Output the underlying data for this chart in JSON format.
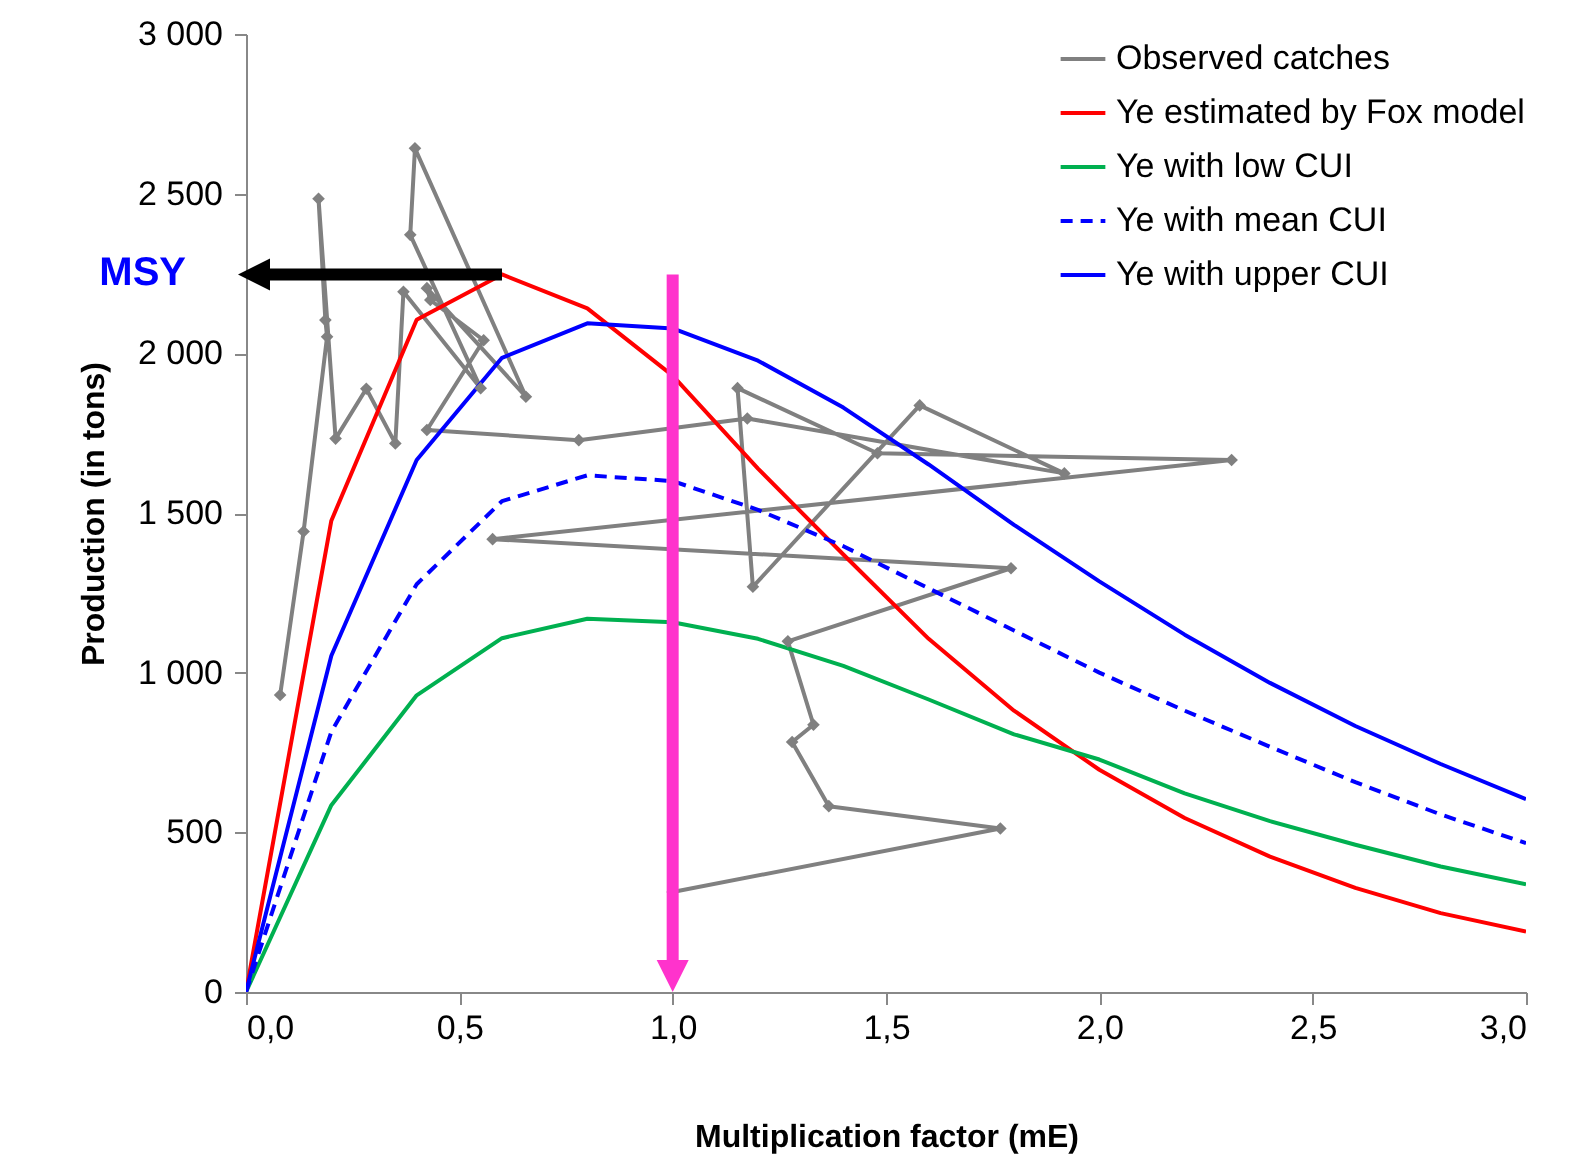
{
  "chart_data": {
    "type": "line",
    "xlabel": "Multiplication factor (mE)",
    "ylabel": "Production (in tons)",
    "xlim": [
      0,
      3
    ],
    "ylim": [
      0,
      3000
    ],
    "xticks": [
      {
        "value": 0,
        "label": "0,0"
      },
      {
        "value": 0.5,
        "label": "0,5"
      },
      {
        "value": 1,
        "label": "1,0"
      },
      {
        "value": 1.5,
        "label": "1,5"
      },
      {
        "value": 2,
        "label": "2,0"
      },
      {
        "value": 2.5,
        "label": "2,5"
      },
      {
        "value": 3,
        "label": "3,0"
      }
    ],
    "yticks": [
      0,
      500,
      {
        "value": 1000,
        "label": "1 000"
      },
      {
        "value": 1500,
        "label": "1 500"
      },
      {
        "value": 2000,
        "label": "2 000"
      },
      {
        "value": 2500,
        "label": "2 500"
      },
      {
        "value": 3000,
        "label": "3 000"
      }
    ],
    "grid": false,
    "legend": "top right",
    "annotations": [
      "MSY"
    ],
    "ref_lines": [
      {
        "axis": "x",
        "value": 1,
        "color": "#ff33cc"
      }
    ],
    "series": [
      {
        "name": "Observed catches",
        "color": "#808080",
        "marker": "diamond",
        "x": [
          0.08,
          0.135,
          0.19,
          0.186,
          0.17,
          0.21,
          0.282,
          0.35,
          0.369,
          0.55,
          0.385,
          0.396,
          0.656,
          0.424,
          0.432,
          0.557,
          0.424,
          0.78,
          1.175,
          1.918,
          1.579,
          1.188,
          1.152,
          1.48,
          2.31,
          0.578,
          1.793,
          1.27,
          1.33,
          1.28,
          1.366,
          1.768,
          1.0
        ],
        "values": [
          930,
          1442,
          2052,
          2104,
          2484,
          1733,
          1889,
          1718,
          2193,
          1891,
          2371,
          2642,
          1864,
          2204,
          2167,
          2041,
          1760,
          1728,
          1796,
          1624,
          1837,
          1269,
          1891,
          1687,
          1666,
          1418,
          1327,
          1098,
          837,
          783,
          582,
          512,
          313
        ]
      },
      {
        "name": "Ye estimated by Fox model",
        "color": "#ff0000",
        "x": [
          0,
          0.2,
          0.4,
          0.6,
          0.8,
          1.0,
          1.2,
          1.4,
          1.6,
          1.8,
          2.0,
          2.2,
          2.4,
          2.6,
          2.8,
          3.0
        ],
        "values": [
          0,
          1476,
          2105,
          2247,
          2141,
          1930,
          1639,
          1370,
          1106,
          881,
          696,
          545,
          424,
          326,
          247,
          189
        ]
      },
      {
        "name": "Ye with low CUI",
        "color": "#00b050",
        "x": [
          0,
          0.2,
          0.4,
          0.6,
          0.8,
          1.0,
          1.2,
          1.4,
          1.6,
          1.8,
          2.0,
          2.2,
          2.4,
          2.6,
          2.8,
          3.0
        ],
        "values": [
          0,
          585,
          929,
          1108,
          1169,
          1158,
          1106,
          1021,
          916,
          807,
          728,
          622,
          535,
          461,
          393,
          337
        ]
      },
      {
        "name": "Ye with mean CUI",
        "color": "#0000ff",
        "line_style": "dashed",
        "x": [
          0,
          0.2,
          0.4,
          0.6,
          0.8,
          1.0,
          1.2,
          1.4,
          1.6,
          1.8,
          2.0,
          2.2,
          2.4,
          2.6,
          2.8,
          3.0
        ],
        "values": [
          0,
          815,
          1277,
          1537,
          1618,
          1600,
          1510,
          1396,
          1264,
          1132,
          1000,
          881,
          768,
          657,
          556,
          466
        ]
      },
      {
        "name": "Ye with upper CUI",
        "color": "#0000ff",
        "x": [
          0,
          0.2,
          0.4,
          0.6,
          0.8,
          1.0,
          1.2,
          1.4,
          1.6,
          1.8,
          2.0,
          2.2,
          2.4,
          2.6,
          2.8,
          3.0
        ],
        "values": [
          0,
          1053,
          1666,
          1986,
          2094,
          2078,
          1977,
          1830,
          1652,
          1463,
          1286,
          1119,
          968,
          833,
          714,
          604
        ]
      }
    ]
  }
}
